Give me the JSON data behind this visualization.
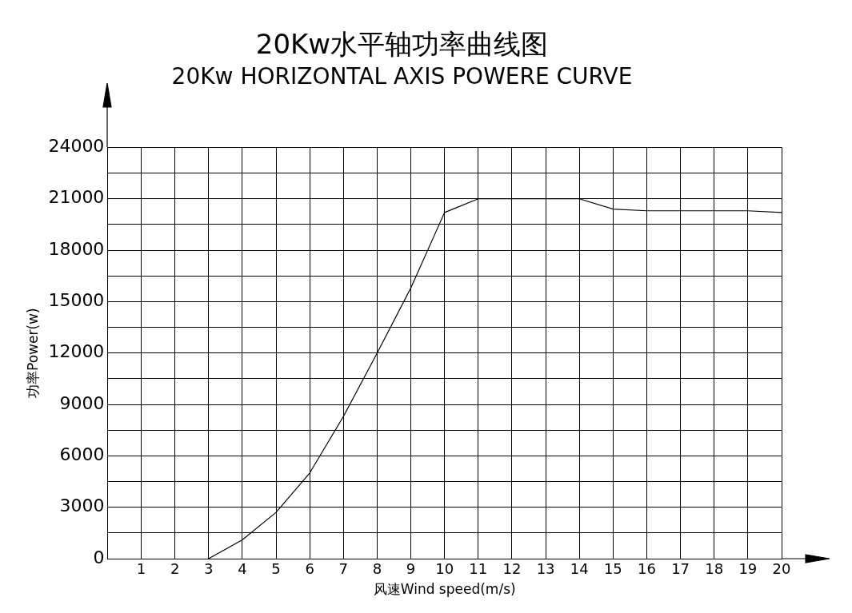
{
  "chart_data": {
    "type": "line",
    "title": "20Kw水平轴功率曲线图",
    "subtitle": "20Kw HORIZONTAL AXIS POWERE CURVE",
    "xlabel": "风速Wind speed(m/s)",
    "ylabel": "功率Power(w)",
    "x": [
      3,
      4,
      5,
      6,
      7,
      8,
      9,
      10,
      11,
      12,
      13,
      14,
      15,
      16,
      17,
      18,
      19,
      20
    ],
    "series": [
      {
        "color": "#000000",
        "values": [
          0,
          1100,
          2700,
          5000,
          8300,
          12000,
          15800,
          20200,
          21000,
          21000,
          21000,
          21000,
          20400,
          20300,
          20300,
          20300,
          20300,
          20200
        ]
      }
    ],
    "xlim": [
      0,
      20
    ],
    "xticks": [
      {
        "value": 0,
        "label": null
      },
      1,
      2,
      3,
      4,
      5,
      6,
      7,
      8,
      9,
      10,
      11,
      12,
      13,
      14,
      15,
      16,
      17,
      18,
      19,
      20
    ],
    "ylim": [
      0,
      24000
    ],
    "yticks": [
      0,
      {
        "value": 1500,
        "label": null
      },
      3000,
      {
        "value": 4500,
        "label": null
      },
      6000,
      {
        "value": 7500,
        "label": null
      },
      9000,
      {
        "value": 10500,
        "label": null
      },
      12000,
      {
        "value": 13500,
        "label": null
      },
      15000,
      {
        "value": 16500,
        "label": null
      },
      18000,
      {
        "value": 19500,
        "label": null
      },
      21000,
      {
        "value": 22500,
        "label": null
      },
      24000
    ],
    "grid": true,
    "marker": "none",
    "line_style": "solid",
    "legend": false
  }
}
